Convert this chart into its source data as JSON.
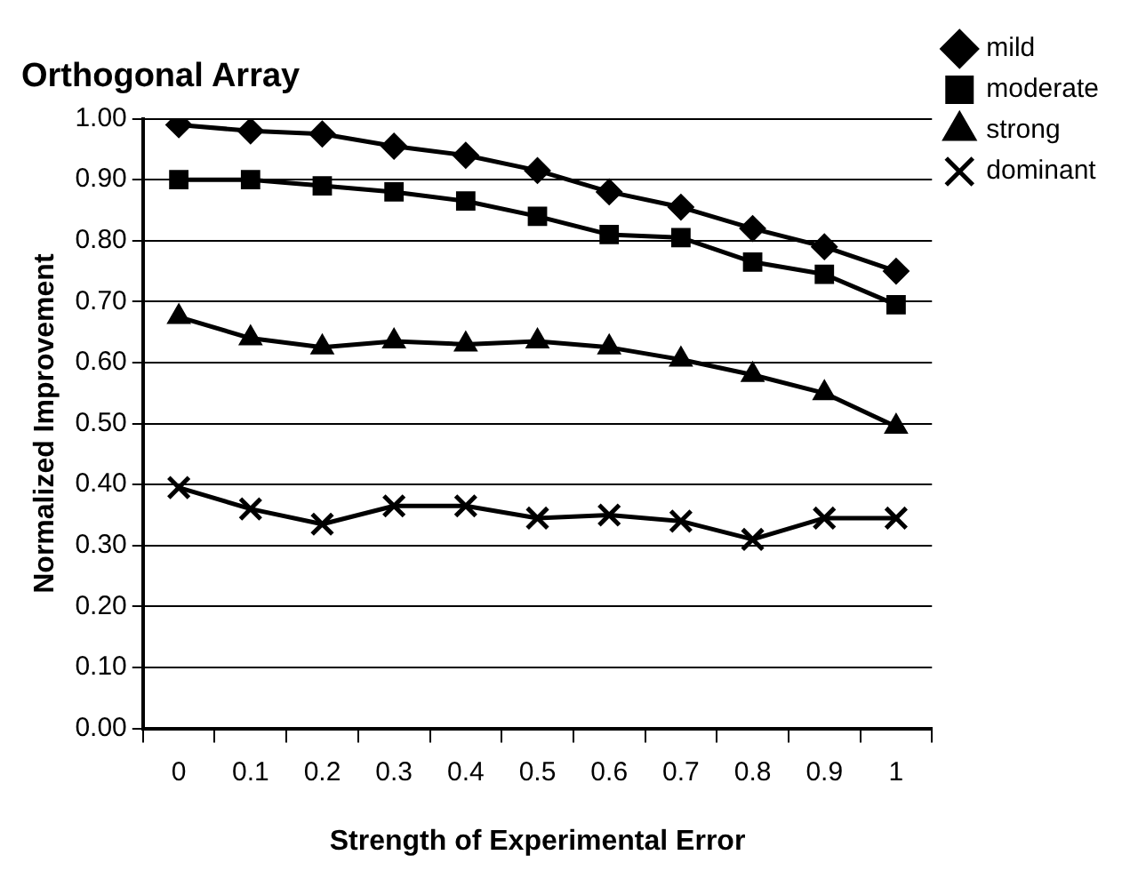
{
  "chart_data": {
    "type": "line",
    "title": "Orthogonal Array",
    "xlabel": "Strength of Experimental Error",
    "ylabel": "Normalized Improvement",
    "categories": [
      "0",
      "0.1",
      "0.2",
      "0.3",
      "0.4",
      "0.5",
      "0.6",
      "0.7",
      "0.8",
      "0.9",
      "1"
    ],
    "series": [
      {
        "name": "mild",
        "color": "#000000",
        "marker": "diamond",
        "values": [
          0.99,
          0.98,
          0.975,
          0.955,
          0.94,
          0.915,
          0.88,
          0.855,
          0.82,
          0.79,
          0.75
        ]
      },
      {
        "name": "moderate",
        "color": "#000000",
        "marker": "square",
        "values": [
          0.9,
          0.9,
          0.89,
          0.88,
          0.865,
          0.84,
          0.81,
          0.805,
          0.765,
          0.745,
          0.695
        ]
      },
      {
        "name": "strong",
        "color": "#000000",
        "marker": "triangle",
        "values": [
          0.675,
          0.64,
          0.625,
          0.635,
          0.63,
          0.635,
          0.625,
          0.605,
          0.58,
          0.55,
          0.495
        ]
      },
      {
        "name": "dominant",
        "color": "#000000",
        "marker": "cross",
        "values": [
          0.395,
          0.36,
          0.335,
          0.365,
          0.365,
          0.345,
          0.35,
          0.34,
          0.31,
          0.345,
          0.345
        ]
      }
    ],
    "ylim": [
      0,
      1
    ],
    "yticks": [
      {
        "value": 0,
        "label": "0.00"
      },
      {
        "value": 0.1,
        "label": "0.10"
      },
      {
        "value": 0.2,
        "label": "0.20"
      },
      {
        "value": 0.3,
        "label": "0.30"
      },
      {
        "value": 0.4,
        "label": "0.40"
      },
      {
        "value": 0.5,
        "label": "0.50"
      },
      {
        "value": 0.6,
        "label": "0.60"
      },
      {
        "value": 0.7,
        "label": "0.70"
      },
      {
        "value": 0.8,
        "label": "0.80"
      },
      {
        "value": 0.9,
        "label": "0.90"
      },
      {
        "value": 1,
        "label": "1.00"
      }
    ],
    "grid": "y",
    "legend": "top right",
    "line_style": "solid"
  }
}
